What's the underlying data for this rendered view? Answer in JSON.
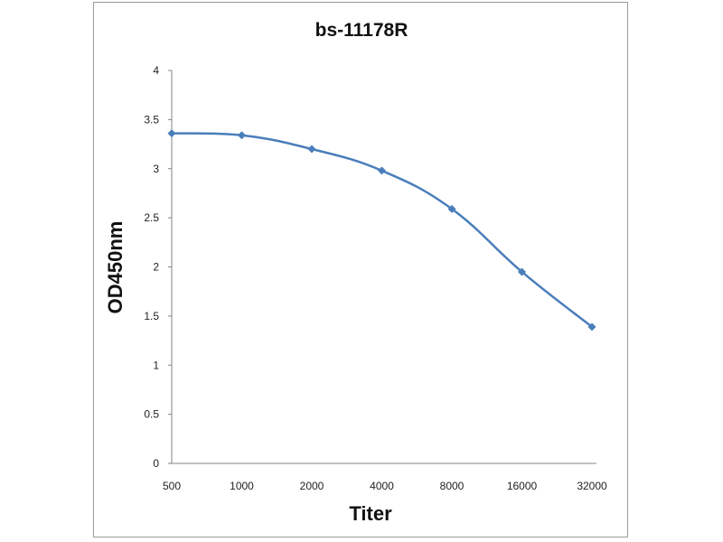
{
  "chart_data": {
    "type": "line",
    "title": "bs-11178R",
    "xlabel": "Titer",
    "ylabel": "OD450nm",
    "categories": [
      "500",
      "1000",
      "2000",
      "4000",
      "8000",
      "16000",
      "32000"
    ],
    "series": [
      {
        "values": [
          3.36,
          3.34,
          3.2,
          2.98,
          2.59,
          1.95,
          1.39
        ]
      }
    ],
    "ylim": [
      0,
      4
    ],
    "yticks": [
      "0",
      "0.5",
      "1",
      "1.5",
      "2",
      "2.5",
      "3",
      "3.5",
      "4"
    ],
    "grid": false,
    "legend": "none",
    "colors": {
      "series": "#4a7ebb",
      "axis": "#868686"
    }
  }
}
